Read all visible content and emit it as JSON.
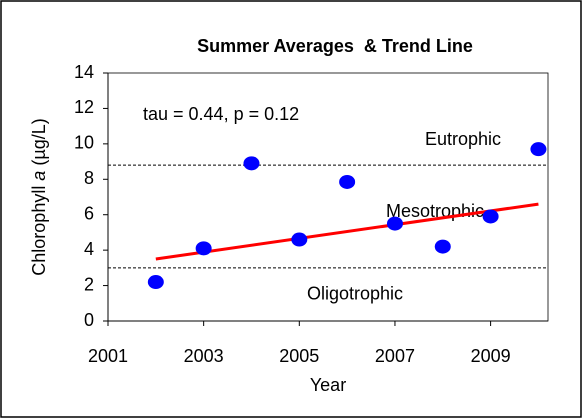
{
  "chart_data": {
    "type": "scatter",
    "title": "Summer Averages  & Trend Line",
    "xlabel": "Year",
    "ylabel": {
      "before": "Chlorophyll ",
      "italic": "a",
      "after": " (µg/L)"
    },
    "x": [
      2002,
      2003,
      2004,
      2005,
      2006,
      2007,
      2008,
      2009,
      2010
    ],
    "series": [
      {
        "color": "#0000ff",
        "values": [
          2.2,
          4.1,
          8.9,
          4.6,
          7.85,
          5.5,
          4.2,
          5.9,
          9.7
        ]
      }
    ],
    "trend": {
      "color": "#ff0000",
      "x": [
        2002,
        2010
      ],
      "values": [
        3.5,
        6.6
      ]
    },
    "thresholds": [
      {
        "value": 8.8,
        "label": "Eutrophic"
      },
      {
        "value": 3.0,
        "label": "Oligotrophic"
      }
    ],
    "annotations": [
      "tau = 0.44, p = 0.12",
      "Mesotrophic"
    ],
    "background": "#99cc00",
    "xlim": [
      2001,
      2010.2
    ],
    "xticks": [
      2001,
      2003,
      2005,
      2007,
      2009
    ],
    "ylim": [
      0,
      14
    ],
    "yticks": [
      0,
      2,
      4,
      6,
      8,
      10,
      12,
      14
    ]
  }
}
